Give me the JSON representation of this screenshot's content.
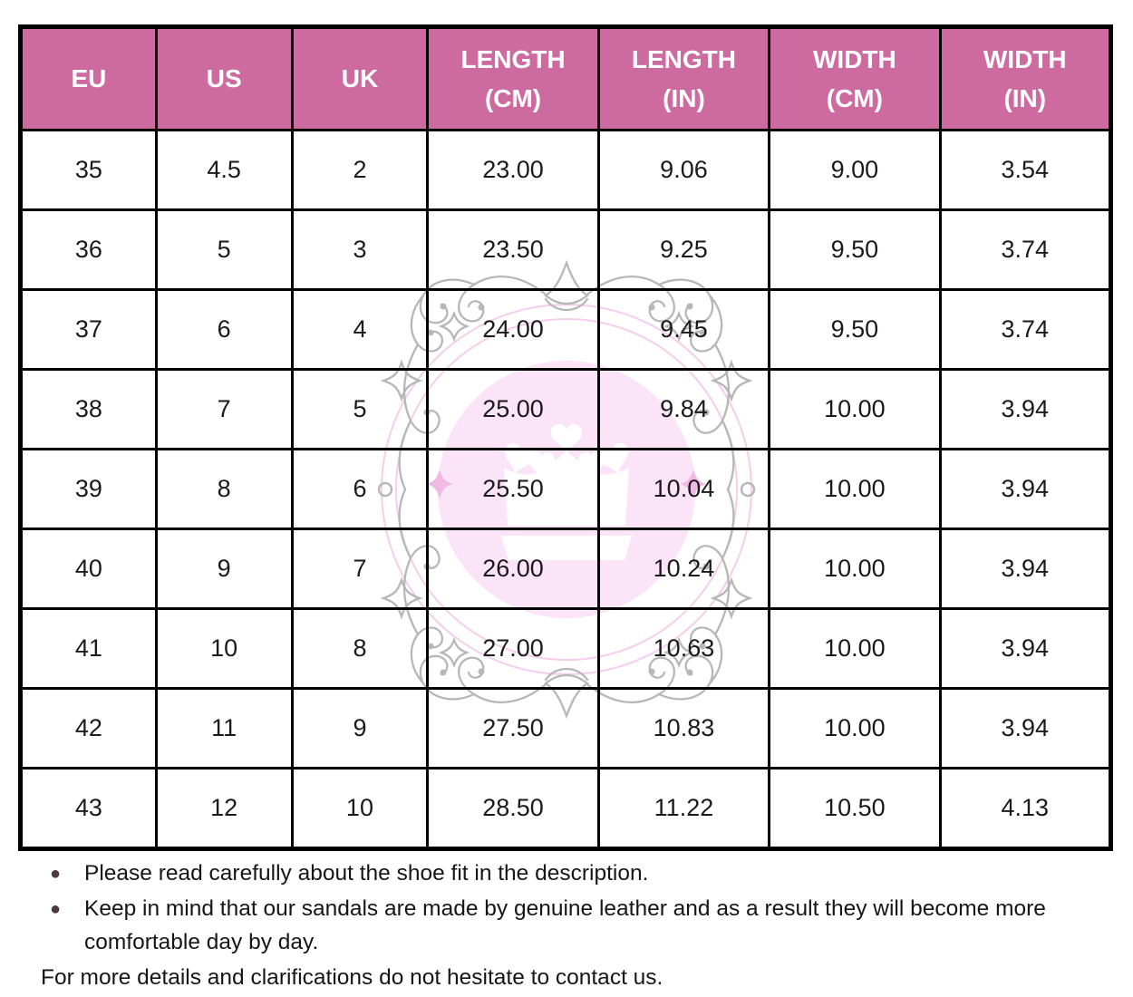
{
  "table": {
    "columns": [
      "EU",
      "US",
      "UK",
      "LENGTH (CM)",
      "LENGTH (IN)",
      "WIDTH (CM)",
      "WIDTH (IN)"
    ],
    "rows": [
      [
        "35",
        "4.5",
        "2",
        "23.00",
        "9.06",
        "9.00",
        "3.54"
      ],
      [
        "36",
        "5",
        "3",
        "23.50",
        "9.25",
        "9.50",
        "3.74"
      ],
      [
        "37",
        "6",
        "4",
        "24.00",
        "9.45",
        "9.50",
        "3.74"
      ],
      [
        "38",
        "7",
        "5",
        "25.00",
        "9.84",
        "10.00",
        "3.94"
      ],
      [
        "39",
        "8",
        "6",
        "25.50",
        "10.04",
        "10.00",
        "3.94"
      ],
      [
        "40",
        "9",
        "7",
        "26.00",
        "10.24",
        "10.00",
        "3.94"
      ],
      [
        "41",
        "10",
        "8",
        "27.00",
        "10.63",
        "10.00",
        "3.94"
      ],
      [
        "42",
        "11",
        "9",
        "27.50",
        "10.83",
        "10.00",
        "3.94"
      ],
      [
        "43",
        "12",
        "10",
        "28.50",
        "11.22",
        "10.50",
        "4.13"
      ]
    ]
  },
  "notes": {
    "bullets": [
      "Please read carefully about the shoe fit in the description.",
      "Keep in mind that our sandals are made by genuine leather and as a result they will become more comfortable day by day."
    ],
    "contact": "For more details and clarifications do not hesitate to contact us."
  },
  "icons": {
    "bullet": "●",
    "watermark": "crown-ornament-watermark"
  },
  "colors": {
    "header_bg": "#cd6ba1",
    "header_text": "#ffffff",
    "table_border": "#000000",
    "body_text": "#1a1a1a",
    "bullet_dot": "#4a3a3a",
    "watermark_gray": "#b7b7b7",
    "watermark_circle_fill": "#fbe3f8",
    "watermark_ring": "#f6cdee",
    "watermark_sparkle": "#f3b9e6",
    "crown_fill": "#ffffff"
  }
}
